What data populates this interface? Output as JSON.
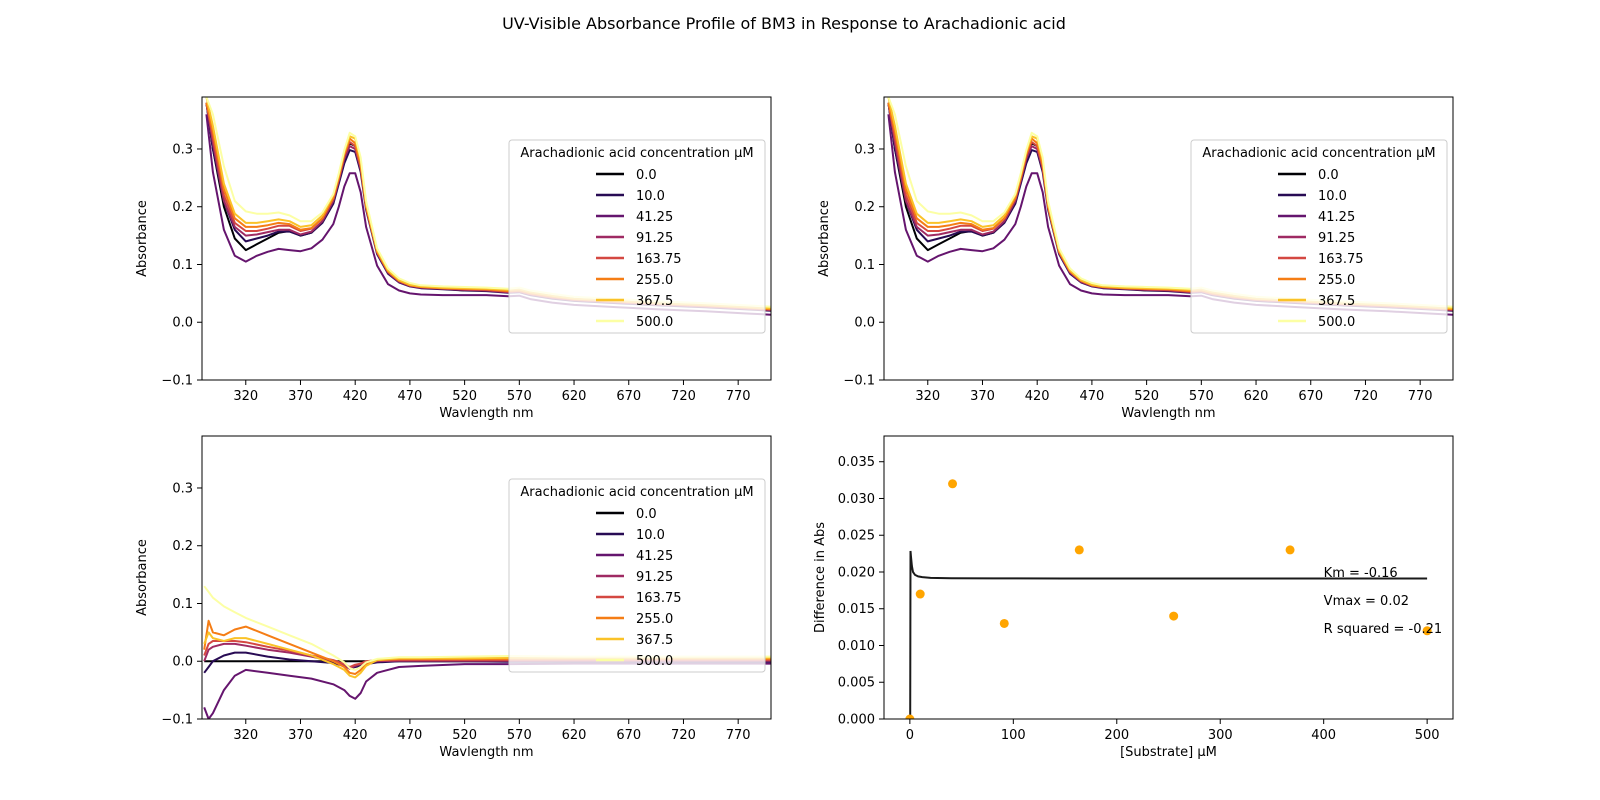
{
  "figure": {
    "title": "UV-Visible Absorbance Profile of BM3 in Response to Arachadionic acid"
  },
  "colors": {
    "fit_line": "#1a1a1a",
    "points": "#ffa500",
    "legend_border": "#cccccc"
  },
  "chart_data": [
    {
      "id": "spectra",
      "type": "line",
      "xlabel": "Wavlength nm",
      "ylabel": "Absorbance",
      "xlim": [
        280,
        800
      ],
      "ylim": [
        -0.1,
        0.39
      ],
      "xticks": [
        320,
        370,
        420,
        470,
        520,
        570,
        620,
        670,
        720,
        770
      ],
      "yticks": [
        -0.1,
        0.0,
        0.1,
        0.2,
        0.3
      ],
      "legend": {
        "title": "Arachadionic acid concentration µM",
        "position": "right"
      },
      "x": [
        284,
        290,
        300,
        310,
        320,
        330,
        340,
        350,
        360,
        370,
        380,
        390,
        400,
        405,
        410,
        415,
        420,
        425,
        430,
        440,
        450,
        460,
        470,
        480,
        500,
        520,
        540,
        560,
        570,
        580,
        600,
        620,
        660,
        700,
        740,
        780,
        800
      ],
      "series": [
        {
          "name": "0.0",
          "color": "#000004",
          "values": [
            0.38,
            0.3,
            0.2,
            0.145,
            0.125,
            0.135,
            0.145,
            0.155,
            0.158,
            0.15,
            0.155,
            0.175,
            0.21,
            0.245,
            0.285,
            0.31,
            0.305,
            0.27,
            0.2,
            0.12,
            0.085,
            0.07,
            0.063,
            0.06,
            0.058,
            0.055,
            0.055,
            0.052,
            0.053,
            0.048,
            0.042,
            0.038,
            0.034,
            0.03,
            0.027,
            0.023,
            0.021
          ]
        },
        {
          "name": "10.0",
          "color": "#280b54",
          "values": [
            0.38,
            0.3,
            0.21,
            0.16,
            0.14,
            0.145,
            0.15,
            0.157,
            0.157,
            0.15,
            0.155,
            0.172,
            0.205,
            0.24,
            0.275,
            0.298,
            0.295,
            0.26,
            0.195,
            0.118,
            0.084,
            0.069,
            0.062,
            0.059,
            0.057,
            0.055,
            0.054,
            0.051,
            0.052,
            0.047,
            0.041,
            0.037,
            0.033,
            0.029,
            0.026,
            0.022,
            0.02
          ]
        },
        {
          "name": "41.25",
          "color": "#65156e",
          "values": [
            0.36,
            0.26,
            0.16,
            0.115,
            0.105,
            0.115,
            0.122,
            0.127,
            0.125,
            0.123,
            0.128,
            0.143,
            0.17,
            0.2,
            0.235,
            0.258,
            0.258,
            0.225,
            0.165,
            0.098,
            0.066,
            0.055,
            0.05,
            0.048,
            0.047,
            0.047,
            0.047,
            0.045,
            0.046,
            0.04,
            0.034,
            0.03,
            0.026,
            0.022,
            0.019,
            0.015,
            0.013
          ]
        },
        {
          "name": "91.25",
          "color": "#9f2a63",
          "values": [
            0.38,
            0.31,
            0.21,
            0.165,
            0.15,
            0.152,
            0.156,
            0.16,
            0.16,
            0.152,
            0.157,
            0.175,
            0.21,
            0.245,
            0.283,
            0.305,
            0.3,
            0.265,
            0.198,
            0.12,
            0.086,
            0.07,
            0.063,
            0.06,
            0.058,
            0.056,
            0.055,
            0.052,
            0.053,
            0.048,
            0.042,
            0.038,
            0.034,
            0.03,
            0.027,
            0.023,
            0.021
          ]
        },
        {
          "name": "163.75",
          "color": "#d44842",
          "values": [
            0.38,
            0.32,
            0.22,
            0.172,
            0.158,
            0.158,
            0.162,
            0.167,
            0.167,
            0.158,
            0.162,
            0.18,
            0.215,
            0.25,
            0.29,
            0.312,
            0.305,
            0.27,
            0.2,
            0.122,
            0.088,
            0.072,
            0.064,
            0.061,
            0.059,
            0.057,
            0.056,
            0.053,
            0.054,
            0.049,
            0.043,
            0.039,
            0.035,
            0.031,
            0.028,
            0.024,
            0.022
          ]
        },
        {
          "name": "255.0",
          "color": "#f57d15",
          "values": [
            0.38,
            0.33,
            0.23,
            0.18,
            0.165,
            0.165,
            0.168,
            0.172,
            0.17,
            0.16,
            0.163,
            0.18,
            0.215,
            0.25,
            0.29,
            0.318,
            0.31,
            0.272,
            0.2,
            0.122,
            0.088,
            0.072,
            0.064,
            0.061,
            0.059,
            0.058,
            0.057,
            0.054,
            0.055,
            0.05,
            0.044,
            0.04,
            0.036,
            0.032,
            0.029,
            0.025,
            0.023
          ]
        },
        {
          "name": "367.5",
          "color": "#fac228",
          "values": [
            0.39,
            0.34,
            0.24,
            0.188,
            0.172,
            0.172,
            0.175,
            0.178,
            0.175,
            0.165,
            0.168,
            0.185,
            0.22,
            0.255,
            0.295,
            0.322,
            0.318,
            0.28,
            0.205,
            0.125,
            0.09,
            0.073,
            0.065,
            0.062,
            0.06,
            0.059,
            0.058,
            0.056,
            0.057,
            0.052,
            0.046,
            0.041,
            0.037,
            0.033,
            0.03,
            0.026,
            0.024
          ]
        },
        {
          "name": "500.0",
          "color": "#fcffa4",
          "values": [
            0.39,
            0.36,
            0.27,
            0.21,
            0.192,
            0.188,
            0.188,
            0.19,
            0.185,
            0.175,
            0.175,
            0.19,
            0.222,
            0.258,
            0.298,
            0.328,
            0.322,
            0.285,
            0.21,
            0.128,
            0.093,
            0.076,
            0.068,
            0.064,
            0.062,
            0.061,
            0.06,
            0.058,
            0.06,
            0.055,
            0.049,
            0.044,
            0.04,
            0.036,
            0.033,
            0.029,
            0.027
          ]
        }
      ]
    },
    {
      "id": "spectra-repeat",
      "type": "line",
      "same_as": "spectra",
      "xlabel": "Wavlength nm",
      "ylabel": "Absorbance"
    },
    {
      "id": "difference",
      "type": "line",
      "xlabel": "Wavlength nm",
      "ylabel": "Absorbance",
      "xlim": [
        280,
        800
      ],
      "ylim": [
        -0.1,
        0.39
      ],
      "xticks": [
        320,
        370,
        420,
        470,
        520,
        570,
        620,
        670,
        720,
        770
      ],
      "yticks": [
        -0.1,
        0.0,
        0.1,
        0.2,
        0.3
      ],
      "legend": {
        "title": "Arachadionic acid concentration µM",
        "position": "right"
      },
      "x": [
        282,
        286,
        290,
        300,
        310,
        320,
        340,
        360,
        380,
        400,
        410,
        415,
        420,
        425,
        430,
        440,
        460,
        480,
        520,
        560,
        620,
        700,
        800
      ],
      "series": [
        {
          "name": "0.0",
          "color": "#000004",
          "values": [
            0,
            0,
            0,
            0,
            0,
            0,
            0,
            0,
            0,
            0,
            0,
            0,
            0,
            0,
            0,
            0,
            0,
            0,
            0,
            0,
            0,
            0,
            0
          ]
        },
        {
          "name": "10.0",
          "color": "#280b54",
          "values": [
            -0.02,
            -0.01,
            0.0,
            0.01,
            0.015,
            0.015,
            0.008,
            0.003,
            0.0,
            -0.003,
            -0.008,
            -0.012,
            -0.01,
            -0.008,
            -0.005,
            -0.002,
            0.0,
            0.0,
            0.0,
            -0.001,
            -0.001,
            -0.001,
            -0.001
          ]
        },
        {
          "name": "41.25",
          "color": "#65156e",
          "values": [
            -0.08,
            -0.1,
            -0.09,
            -0.05,
            -0.025,
            -0.015,
            -0.02,
            -0.025,
            -0.03,
            -0.04,
            -0.05,
            -0.06,
            -0.065,
            -0.055,
            -0.035,
            -0.02,
            -0.01,
            -0.008,
            -0.005,
            -0.005,
            -0.004,
            -0.004,
            -0.004
          ]
        },
        {
          "name": "91.25",
          "color": "#9f2a63",
          "values": [
            0.0,
            0.02,
            0.025,
            0.03,
            0.03,
            0.027,
            0.02,
            0.015,
            0.008,
            0.0,
            -0.008,
            -0.013,
            -0.008,
            -0.005,
            -0.002,
            0.0,
            0.001,
            0.001,
            0.001,
            0.001,
            0.001,
            0.001,
            0.001
          ]
        },
        {
          "name": "163.75",
          "color": "#d44842",
          "values": [
            0.01,
            0.03,
            0.035,
            0.035,
            0.035,
            0.033,
            0.025,
            0.018,
            0.01,
            0.002,
            -0.005,
            -0.01,
            -0.006,
            -0.004,
            0.0,
            0.002,
            0.002,
            0.002,
            0.002,
            0.002,
            0.002,
            0.002,
            0.002
          ]
        },
        {
          "name": "255.0",
          "color": "#f57d15",
          "values": [
            0.02,
            0.07,
            0.05,
            0.045,
            0.055,
            0.06,
            0.045,
            0.03,
            0.015,
            0.0,
            -0.01,
            -0.02,
            -0.022,
            -0.015,
            -0.005,
            0.002,
            0.004,
            0.004,
            0.004,
            0.004,
            0.004,
            0.004,
            0.004
          ]
        },
        {
          "name": "367.5",
          "color": "#fac228",
          "values": [
            0.03,
            0.05,
            0.04,
            0.035,
            0.04,
            0.04,
            0.03,
            0.02,
            0.01,
            -0.005,
            -0.015,
            -0.025,
            -0.028,
            -0.02,
            -0.008,
            0.002,
            0.005,
            0.005,
            0.005,
            0.006,
            0.006,
            0.006,
            0.006
          ]
        },
        {
          "name": "500.0",
          "color": "#fcffa4",
          "values": [
            0.13,
            0.12,
            0.11,
            0.095,
            0.085,
            0.075,
            0.06,
            0.045,
            0.03,
            0.01,
            -0.002,
            -0.012,
            -0.015,
            -0.01,
            -0.002,
            0.004,
            0.007,
            0.007,
            0.008,
            0.009,
            0.008,
            0.008,
            0.008
          ]
        }
      ]
    },
    {
      "id": "michaelis-menten",
      "type": "scatter",
      "xlabel": "[Substrate] µM",
      "ylabel": "Difference in Abs",
      "xlim": [
        -25,
        525
      ],
      "ylim": [
        0,
        0.0385
      ],
      "xticks": [
        0,
        100,
        200,
        300,
        400,
        500
      ],
      "yticks": [
        0.0,
        0.005,
        0.01,
        0.015,
        0.02,
        0.025,
        0.03,
        0.035
      ],
      "ytick_labels": [
        "0.000",
        "0.005",
        "0.010",
        "0.015",
        "0.020",
        "0.025",
        "0.030",
        "0.035"
      ],
      "points": {
        "x": [
          0.0,
          10.0,
          41.25,
          91.25,
          163.75,
          255.0,
          367.5,
          500.0
        ],
        "y": [
          0.0,
          0.017,
          0.032,
          0.013,
          0.023,
          0.014,
          0.023,
          0.012
        ]
      },
      "fit": {
        "x": [
          0.0,
          0.3,
          0.6,
          1,
          2,
          3,
          5,
          8,
          12,
          20,
          40,
          80,
          150,
          300,
          500
        ],
        "y": [
          0.0,
          0.0,
          0.02285,
          0.0222,
          0.0208,
          0.02,
          0.0196,
          0.0194,
          0.0193,
          0.0192,
          0.01915,
          0.01913,
          0.01912,
          0.01912,
          0.01912
        ]
      },
      "annotations": [
        "Km = -0.16",
        "Vmax = 0.02",
        "R squared = -0.21"
      ]
    }
  ]
}
